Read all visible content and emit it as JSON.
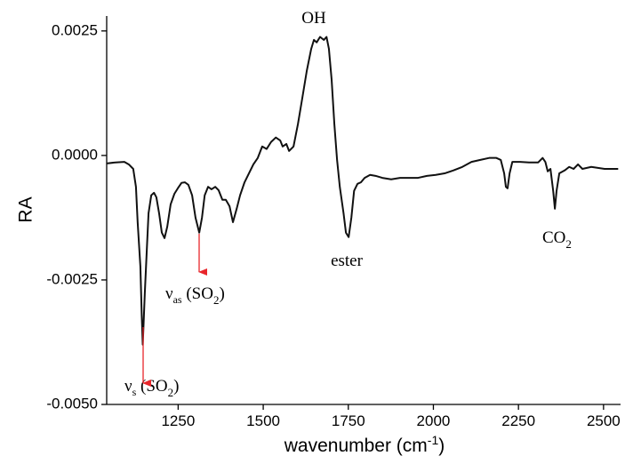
{
  "chart_data": {
    "type": "line",
    "ylabel": "RA",
    "xlabel": [
      "wavenumber (cm",
      "-1",
      ")"
    ],
    "color": "#111111",
    "xlim": [
      1040,
      2550
    ],
    "xticks": [
      1250,
      1500,
      1750,
      2000,
      2250,
      2500
    ],
    "ylim": [
      -0.005,
      0.0028
    ],
    "yticks": [
      {
        "value": -0.005,
        "label": "-0.0050"
      },
      {
        "value": -0.0025,
        "label": "-0.0025"
      },
      {
        "value": 0,
        "label": "0.0000"
      },
      {
        "value": 0.0025,
        "label": "0.0025"
      }
    ],
    "annotations": [
      {
        "text": "OH"
      },
      {
        "text": "ester"
      },
      {
        "parts": [
          "CO",
          "2"
        ]
      },
      {
        "parts": [
          "ν",
          "as",
          " (SO",
          "2",
          ")"
        ]
      },
      {
        "parts": [
          "ν",
          "s",
          " (SO",
          "2",
          ")"
        ]
      }
    ],
    "x": [
      1040,
      1066,
      1092,
      1105,
      1118,
      1126,
      1131,
      1139,
      1143,
      1146,
      1152,
      1158,
      1163,
      1171,
      1179,
      1186,
      1194,
      1202,
      1210,
      1218,
      1228,
      1239,
      1249,
      1260,
      1270,
      1280,
      1291,
      1301,
      1312,
      1320,
      1328,
      1338,
      1348,
      1359,
      1369,
      1380,
      1390,
      1401,
      1411,
      1422,
      1432,
      1445,
      1458,
      1471,
      1484,
      1497,
      1510,
      1523,
      1537,
      1550,
      1557,
      1568,
      1576,
      1589,
      1602,
      1615,
      1628,
      1641,
      1649,
      1657,
      1667,
      1678,
      1686,
      1693,
      1701,
      1709,
      1717,
      1725,
      1736,
      1743,
      1751,
      1759,
      1767,
      1777,
      1787,
      1798,
      1814,
      1830,
      1850,
      1876,
      1902,
      1929,
      1955,
      1981,
      2007,
      2033,
      2059,
      2085,
      2112,
      2138,
      2164,
      2185,
      2198,
      2208,
      2213,
      2218,
      2224,
      2232,
      2255,
      2281,
      2308,
      2321,
      2329,
      2336,
      2344,
      2352,
      2357,
      2362,
      2370,
      2386,
      2399,
      2412,
      2425,
      2438,
      2464,
      2503,
      2543
    ],
    "values": [
      -0.00016,
      -0.00014,
      -0.00013,
      -0.00018,
      -0.00027,
      -0.00063,
      -0.00134,
      -0.00223,
      -0.00321,
      -0.0038,
      -0.00277,
      -0.00188,
      -0.00116,
      -0.0008,
      -0.00075,
      -0.00084,
      -0.00116,
      -0.00155,
      -0.00166,
      -0.00143,
      -0.00098,
      -0.00077,
      -0.00066,
      -0.00055,
      -0.00054,
      -0.00059,
      -0.0008,
      -0.00125,
      -0.00155,
      -0.00125,
      -0.0008,
      -0.00063,
      -0.00068,
      -0.00063,
      -0.0007,
      -0.00089,
      -0.00089,
      -0.00102,
      -0.00134,
      -0.00107,
      -0.0008,
      -0.00054,
      -0.00036,
      -0.00018,
      -5e-05,
      0.00018,
      0.00013,
      0.00027,
      0.00036,
      0.0003,
      0.00018,
      0.00023,
      9e-05,
      0.00018,
      0.00063,
      0.00116,
      0.0017,
      0.00214,
      0.00232,
      0.00227,
      0.00238,
      0.00232,
      0.00238,
      0.00214,
      0.00152,
      0.00063,
      -9e-05,
      -0.00063,
      -0.00116,
      -0.00155,
      -0.00164,
      -0.00125,
      -0.00071,
      -0.00057,
      -0.00054,
      -0.00045,
      -0.00039,
      -0.00041,
      -0.00045,
      -0.00048,
      -0.00045,
      -0.00045,
      -0.00045,
      -0.00041,
      -0.00039,
      -0.00036,
      -0.0003,
      -0.00023,
      -0.00013,
      -9e-05,
      -5e-05,
      -5e-05,
      -9e-05,
      -0.00036,
      -0.00063,
      -0.00066,
      -0.00036,
      -0.00013,
      -0.00013,
      -0.00014,
      -0.00014,
      -5e-05,
      -0.00013,
      -0.00032,
      -0.00027,
      -0.00071,
      -0.00107,
      -0.00071,
      -0.00036,
      -0.0003,
      -0.00023,
      -0.00027,
      -0.00018,
      -0.00027,
      -0.00023,
      -0.00027,
      -0.00027
    ]
  }
}
